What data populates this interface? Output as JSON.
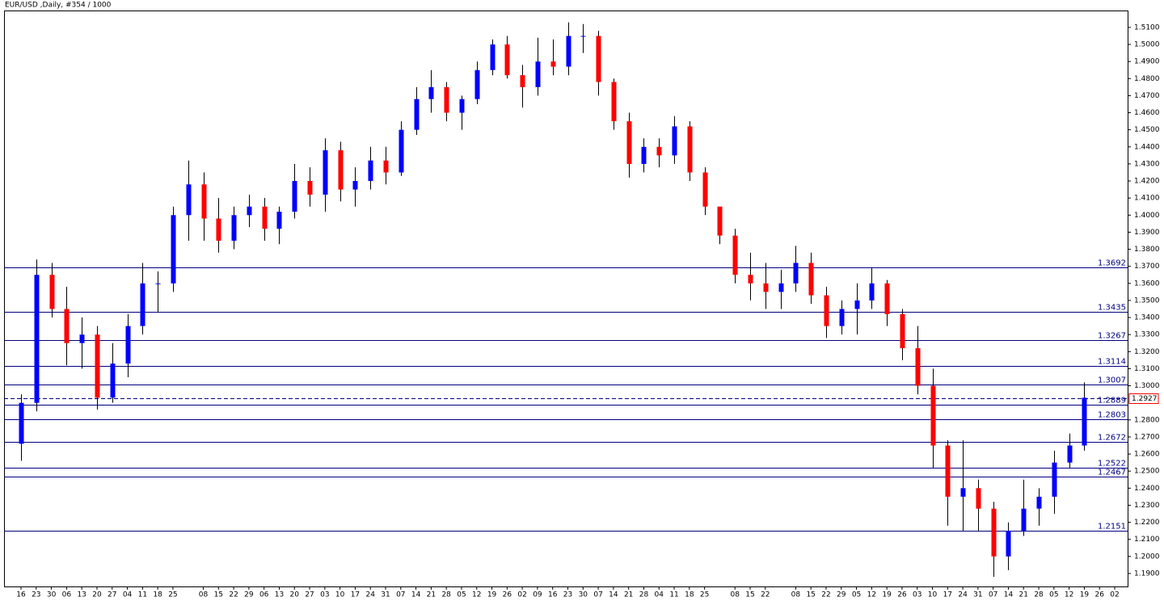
{
  "chart_data": {
    "type": "candlestick",
    "title": "EUR/USD ,Daily, #354 / 1000",
    "categories": [
      "16",
      "23",
      "30",
      "06",
      "13",
      "20",
      "27",
      "04",
      "11",
      "18",
      "25",
      null,
      "08",
      "15",
      "22",
      "29",
      "06",
      "13",
      "20",
      "27",
      "03",
      "10",
      "17",
      "24",
      "31",
      "07",
      "14",
      "21",
      "28",
      "05",
      "12",
      "19",
      "26",
      "02",
      "09",
      "16",
      "23",
      "30",
      "07",
      "14",
      "21",
      "28",
      "04",
      "11",
      "18",
      "25",
      null,
      "08",
      "15",
      "22",
      null,
      "08",
      "15",
      "22",
      "29",
      "05",
      "12",
      "19",
      "26",
      "03",
      "10",
      "17",
      "24",
      "31",
      "07",
      "14",
      "21",
      "28",
      "05",
      "12",
      "19",
      "26",
      "02"
    ],
    "open": [
      1.266,
      1.29,
      1.365,
      1.345,
      1.325,
      1.33,
      1.293,
      1.313,
      1.335,
      1.36,
      1.36,
      1.4,
      1.418,
      1.398,
      1.385,
      1.4,
      1.405,
      1.392,
      1.402,
      1.42,
      1.412,
      1.438,
      1.415,
      1.42,
      1.432,
      1.425,
      1.45,
      1.468,
      1.475,
      1.46,
      1.468,
      1.485,
      1.5,
      1.482,
      1.475,
      1.49,
      1.487,
      1.505,
      1.505,
      1.478,
      1.455,
      1.43,
      1.44,
      1.435,
      1.452,
      1.425,
      1.405,
      1.388,
      1.365,
      1.36,
      1.355,
      1.36,
      1.372,
      1.353,
      1.335,
      1.345,
      1.35,
      1.36,
      1.342,
      1.322,
      1.3,
      1.265,
      1.235,
      1.24,
      1.228,
      1.2,
      1.215,
      1.228,
      1.235,
      1.255,
      1.265,
      null,
      null
    ],
    "high": [
      1.295,
      1.374,
      1.372,
      1.358,
      1.34,
      1.335,
      1.325,
      1.342,
      1.372,
      1.367,
      1.405,
      1.432,
      1.425,
      1.41,
      1.405,
      1.412,
      1.41,
      1.405,
      1.43,
      1.428,
      1.445,
      1.443,
      1.428,
      1.44,
      1.44,
      1.455,
      1.475,
      1.485,
      1.478,
      1.47,
      1.49,
      1.503,
      1.505,
      1.488,
      1.504,
      1.503,
      1.513,
      1.512,
      1.508,
      1.48,
      1.46,
      1.445,
      1.445,
      1.458,
      1.455,
      1.428,
      1.405,
      1.392,
      1.378,
      1.372,
      1.368,
      1.382,
      1.378,
      1.358,
      1.35,
      1.36,
      1.369,
      1.362,
      1.345,
      1.335,
      1.31,
      1.268,
      1.268,
      1.245,
      1.232,
      1.22,
      1.245,
      1.24,
      1.262,
      1.272,
      1.302,
      null,
      null
    ],
    "low": [
      1.256,
      1.285,
      1.34,
      1.312,
      1.31,
      1.286,
      1.29,
      1.305,
      1.33,
      1.343,
      1.355,
      1.385,
      1.385,
      1.378,
      1.38,
      1.393,
      1.385,
      1.383,
      1.398,
      1.405,
      1.402,
      1.408,
      1.405,
      1.415,
      1.418,
      1.423,
      1.447,
      1.46,
      1.455,
      1.45,
      1.465,
      1.482,
      1.48,
      1.463,
      1.47,
      1.482,
      1.482,
      1.495,
      1.47,
      1.45,
      1.422,
      1.425,
      1.428,
      1.43,
      1.42,
      1.4,
      1.383,
      1.36,
      1.35,
      1.345,
      1.345,
      1.355,
      1.348,
      1.328,
      1.33,
      1.33,
      1.345,
      1.335,
      1.315,
      1.295,
      1.252,
      1.218,
      1.215,
      1.215,
      1.188,
      1.192,
      1.212,
      1.218,
      1.225,
      1.252,
      1.262,
      null,
      null
    ],
    "close": [
      1.29,
      1.365,
      1.345,
      1.325,
      1.33,
      1.293,
      1.313,
      1.335,
      1.36,
      1.36,
      1.4,
      1.418,
      1.398,
      1.385,
      1.4,
      1.405,
      1.392,
      1.402,
      1.42,
      1.412,
      1.438,
      1.415,
      1.42,
      1.432,
      1.425,
      1.45,
      1.468,
      1.475,
      1.46,
      1.468,
      1.485,
      1.5,
      1.482,
      1.475,
      1.49,
      1.487,
      1.505,
      1.505,
      1.478,
      1.455,
      1.43,
      1.44,
      1.435,
      1.452,
      1.425,
      1.405,
      1.388,
      1.365,
      1.36,
      1.355,
      1.36,
      1.372,
      1.353,
      1.335,
      1.345,
      1.35,
      1.36,
      1.342,
      1.322,
      1.3,
      1.265,
      1.235,
      1.24,
      1.228,
      1.2,
      1.215,
      1.228,
      1.235,
      1.255,
      1.265,
      1.293,
      null,
      null
    ],
    "up_color": "#0000ff",
    "down_color": "#ff0000",
    "level_color": "#000080",
    "ylim": [
      1.1824,
      1.5199
    ],
    "yticks": [
      {
        "value": 1.19,
        "label": "1.1900"
      },
      {
        "value": 1.2,
        "label": "1.2000"
      },
      {
        "value": 1.21,
        "label": "1.2100"
      },
      {
        "value": 1.22,
        "label": "1.2200"
      },
      {
        "value": 1.23,
        "label": "1.2300"
      },
      {
        "value": 1.24,
        "label": "1.2400"
      },
      {
        "value": 1.25,
        "label": "1.2500"
      },
      {
        "value": 1.26,
        "label": "1.2600"
      },
      {
        "value": 1.27,
        "label": "1.2700"
      },
      {
        "value": 1.28,
        "label": "1.2800"
      },
      {
        "value": 1.3,
        "label": "1.3000"
      },
      {
        "value": 1.31,
        "label": "1.3100"
      },
      {
        "value": 1.32,
        "label": "1.3200"
      },
      {
        "value": 1.33,
        "label": "1.3300"
      },
      {
        "value": 1.34,
        "label": "1.3400"
      },
      {
        "value": 1.35,
        "label": "1.3500"
      },
      {
        "value": 1.36,
        "label": "1.3600"
      },
      {
        "value": 1.37,
        "label": "1.3700"
      },
      {
        "value": 1.38,
        "label": "1.3800"
      },
      {
        "value": 1.39,
        "label": "1.3900"
      },
      {
        "value": 1.4,
        "label": "1.4000"
      },
      {
        "value": 1.41,
        "label": "1.4100"
      },
      {
        "value": 1.42,
        "label": "1.4200"
      },
      {
        "value": 1.43,
        "label": "1.4300"
      },
      {
        "value": 1.44,
        "label": "1.4400"
      },
      {
        "value": 1.45,
        "label": "1.4500"
      },
      {
        "value": 1.46,
        "label": "1.4600"
      },
      {
        "value": 1.47,
        "label": "1.4700"
      },
      {
        "value": 1.48,
        "label": "1.4800"
      },
      {
        "value": 1.49,
        "label": "1.4900"
      },
      {
        "value": 1.5,
        "label": "1.5000"
      },
      {
        "value": 1.51,
        "label": "1.5100"
      }
    ],
    "levels": [
      1.3692,
      1.3435,
      1.3267,
      1.3114,
      1.3007,
      1.2889,
      1.2803,
      1.2672,
      1.2522,
      1.2467,
      1.2151
    ],
    "current_price": 1.2927
  }
}
